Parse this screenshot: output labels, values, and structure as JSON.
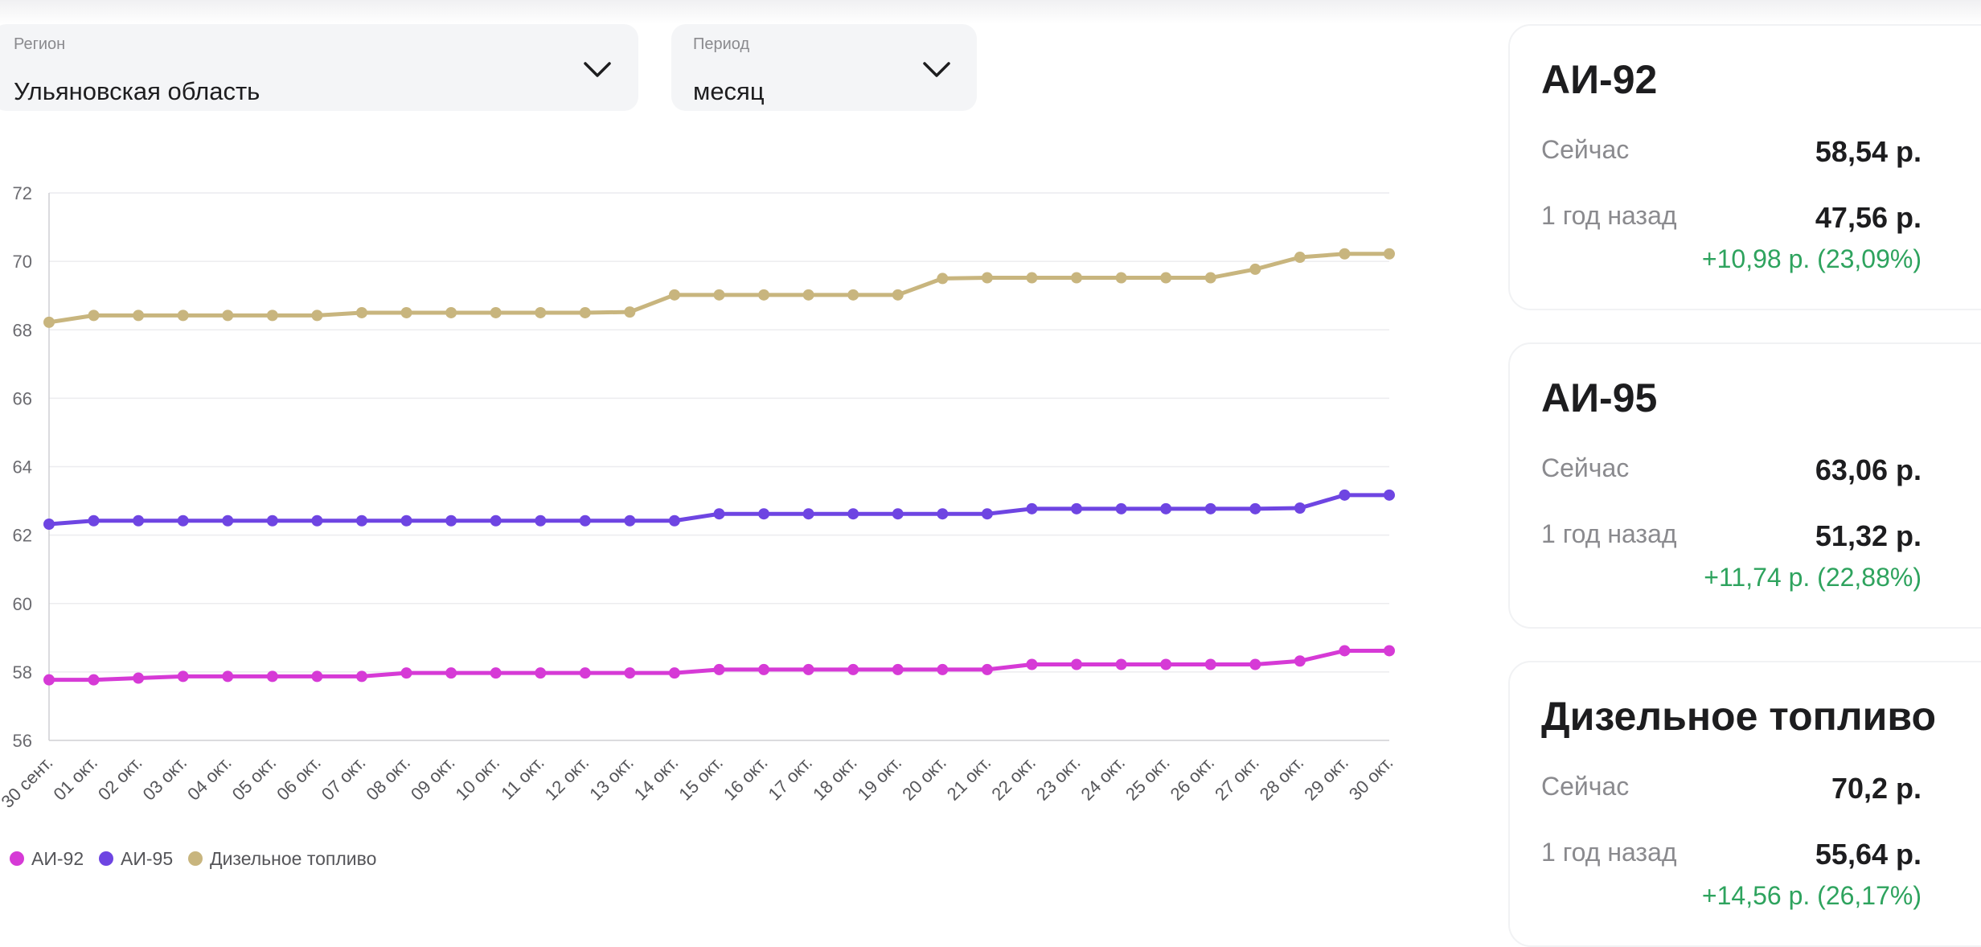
{
  "filters": {
    "region": {
      "label": "Регион",
      "value": "Ульяновская область"
    },
    "period": {
      "label": "Период",
      "value": "месяц"
    }
  },
  "chart_data": {
    "type": "line",
    "x": [
      "30 сент.",
      "01 окт.",
      "02 окт.",
      "03 окт.",
      "04 окт.",
      "05 окт.",
      "06 окт.",
      "07 окт.",
      "08 окт.",
      "09 окт.",
      "10 окт.",
      "11 окт.",
      "12 окт.",
      "13 окт.",
      "14 окт.",
      "15 окт.",
      "16 окт.",
      "17 окт.",
      "18 окт.",
      "19 окт.",
      "20 окт.",
      "21 окт.",
      "22 окт.",
      "23 окт.",
      "24 окт.",
      "25 окт.",
      "26 окт.",
      "27 окт.",
      "28 окт.",
      "29 окт.",
      "30 окт."
    ],
    "ylim": [
      56,
      72
    ],
    "yticks": [
      56,
      58,
      60,
      62,
      64,
      66,
      68,
      70,
      72
    ],
    "grid": true,
    "legend_position": "bottom-left",
    "series": [
      {
        "name": "АИ-92",
        "color": "#d63ad6",
        "values": [
          57.77,
          57.77,
          57.82,
          57.87,
          57.87,
          57.87,
          57.87,
          57.87,
          57.97,
          57.97,
          57.97,
          57.97,
          57.97,
          57.97,
          57.97,
          58.07,
          58.07,
          58.07,
          58.07,
          58.07,
          58.07,
          58.07,
          58.22,
          58.22,
          58.22,
          58.22,
          58.22,
          58.22,
          58.32,
          58.62,
          58.62
        ]
      },
      {
        "name": "АИ-95",
        "color": "#6e45e2",
        "values": [
          62.32,
          62.42,
          62.42,
          62.42,
          62.42,
          62.42,
          62.42,
          62.42,
          62.42,
          62.42,
          62.42,
          62.42,
          62.42,
          62.42,
          62.42,
          62.62,
          62.62,
          62.62,
          62.62,
          62.62,
          62.62,
          62.62,
          62.77,
          62.77,
          62.77,
          62.77,
          62.77,
          62.77,
          62.79,
          63.17,
          63.17
        ]
      },
      {
        "name": "Дизельное топливо",
        "color": "#c8b57e",
        "values": [
          68.22,
          68.42,
          68.42,
          68.42,
          68.42,
          68.42,
          68.42,
          68.5,
          68.5,
          68.5,
          68.5,
          68.5,
          68.5,
          68.52,
          69.02,
          69.02,
          69.02,
          69.02,
          69.02,
          69.02,
          69.5,
          69.52,
          69.52,
          69.52,
          69.52,
          69.52,
          69.52,
          69.77,
          70.12,
          70.22,
          70.22
        ]
      }
    ]
  },
  "cards": [
    {
      "title": "АИ-92",
      "now_label": "Сейчас",
      "now_value": "58,54 р.",
      "ago_label": "1 год назад",
      "ago_value": "47,56 р.",
      "delta": "+10,98 р. (23,09%)"
    },
    {
      "title": "АИ-95",
      "now_label": "Сейчас",
      "now_value": "63,06 р.",
      "ago_label": "1 год назад",
      "ago_value": "51,32 р.",
      "delta": "+11,74 р. (22,88%)"
    },
    {
      "title": "Дизельное топливо",
      "now_label": "Сейчас",
      "now_value": "70,2 р.",
      "ago_label": "1 год назад",
      "ago_value": "55,64 р.",
      "delta": "+14,56 р. (26,17%)"
    }
  ]
}
